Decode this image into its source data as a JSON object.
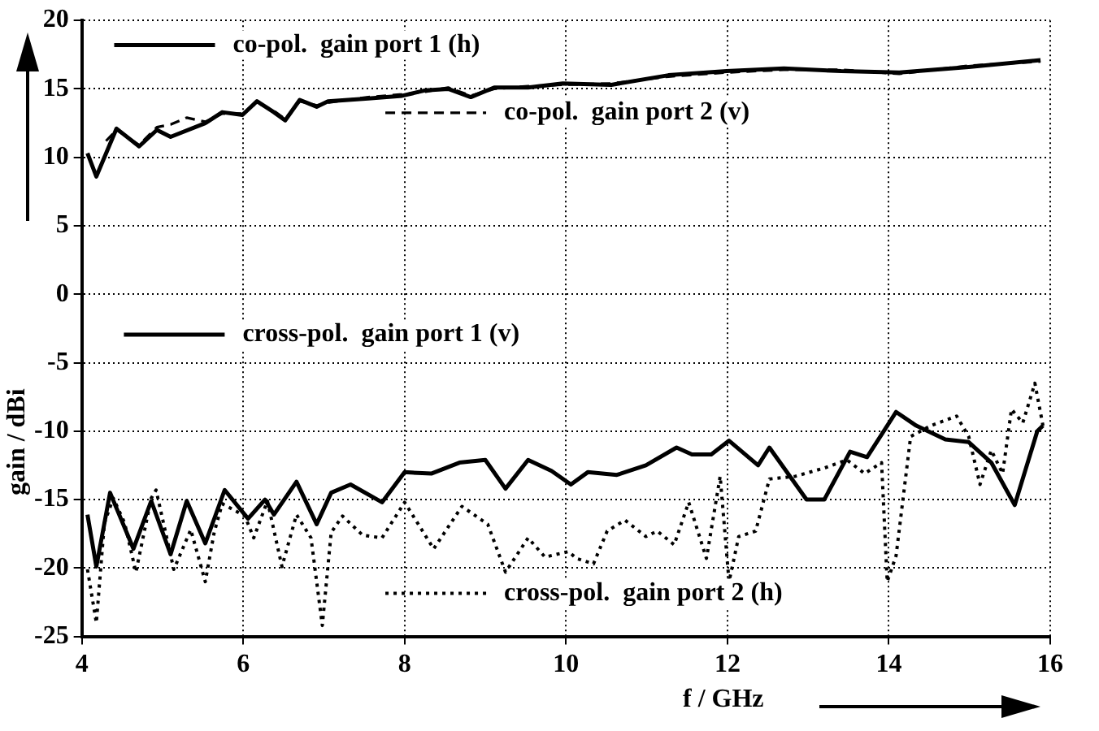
{
  "chart_data": {
    "type": "line",
    "xlabel": "f / GHz",
    "ylabel": "gain / dBi",
    "xlim": [
      4,
      16
    ],
    "xticks": [
      4,
      6,
      8,
      10,
      12,
      14,
      16
    ],
    "ylim": [
      -25,
      20
    ],
    "yticks": [
      -25,
      -20,
      -15,
      -10,
      -5,
      0,
      5,
      10,
      15,
      20
    ],
    "grid": true,
    "legend": "top left",
    "marker": "none",
    "series": [
      {
        "name": "co-pol.  gain port 1 (h)",
        "color": "#000000",
        "line_style": "solid",
        "x": [
          4.07,
          4.18,
          4.43,
          4.71,
          4.93,
          5.1,
          5.53,
          5.74,
          5.99,
          6.17,
          6.38,
          6.52,
          6.7,
          6.91,
          7.05,
          7.55,
          7.97,
          8.26,
          8.54,
          8.82,
          9.11,
          9.53,
          9.96,
          10.56,
          11.27,
          11.99,
          12.7,
          13.41,
          14.13,
          14.99,
          15.88
        ],
        "values": [
          10.3,
          8.6,
          12.1,
          10.8,
          12,
          11.5,
          12.5,
          13.3,
          13.1,
          14.1,
          13.3,
          12.7,
          14.2,
          13.7,
          14.1,
          14.3,
          14.5,
          14.9,
          15,
          14.4,
          15.1,
          15.1,
          15.4,
          15.3,
          16,
          16.3,
          16.5,
          16.3,
          16.2,
          16.6,
          17.1
        ]
      },
      {
        "name": "co-pol.  gain port 2 (v)",
        "color": "#000000",
        "line_style": "dashed",
        "x": [
          4.3,
          4.43,
          4.71,
          4.93,
          5.1,
          5.3,
          5.53,
          5.74,
          5.99,
          6.17,
          6.38,
          6.52,
          6.7,
          6.91,
          7.05,
          7.55,
          7.97,
          8.26,
          8.54,
          8.82,
          9.11,
          9.53,
          9.96,
          10.56,
          11.27,
          11.99,
          12.7,
          13.41,
          14.13,
          14.99,
          15.88
        ],
        "values": [
          11.2,
          12,
          10.9,
          12.2,
          12.4,
          12.9,
          12.6,
          13.2,
          13.2,
          14,
          13.4,
          12.8,
          14.1,
          13.8,
          14,
          14.4,
          14.6,
          14.8,
          15.1,
          14.5,
          15,
          15.2,
          15.3,
          15.4,
          15.9,
          16.2,
          16.4,
          16.4,
          16.1,
          16.7,
          17
        ]
      },
      {
        "name": "cross-pol.  gain port 1 (v)",
        "color": "#000000",
        "line_style": "solid",
        "x": [
          4.07,
          4.18,
          4.35,
          4.64,
          4.86,
          5.1,
          5.3,
          5.53,
          5.77,
          6.06,
          6.27,
          6.38,
          6.66,
          6.91,
          7.09,
          7.33,
          7.72,
          8,
          8.33,
          8.68,
          9,
          9.25,
          9.53,
          9.82,
          10.06,
          10.27,
          10.63,
          10.99,
          11.37,
          11.56,
          11.8,
          12.02,
          12.38,
          12.52,
          12.98,
          13.2,
          13.52,
          13.73,
          14.09,
          14.34,
          14.7,
          14.99,
          15.27,
          15.56,
          15.84,
          15.91
        ],
        "values": [
          -16.1,
          -19.9,
          -14.5,
          -18.6,
          -15.1,
          -19,
          -15.1,
          -18.2,
          -14.3,
          -16.4,
          -15,
          -16.1,
          -13.7,
          -16.8,
          -14.5,
          -13.9,
          -15.2,
          -13,
          -13.1,
          -12.3,
          -12.1,
          -14.2,
          -12.1,
          -12.9,
          -13.9,
          -13,
          -13.2,
          -12.5,
          -11.2,
          -11.7,
          -11.7,
          -10.7,
          -12.5,
          -11.2,
          -15,
          -15,
          -11.5,
          -11.9,
          -8.6,
          -9.6,
          -10.6,
          -10.8,
          -12.3,
          -15.4,
          -10,
          -9.6
        ]
      },
      {
        "name": "cross-pol.  gain port 2 (h)",
        "color": "#000000",
        "line_style": "dotted",
        "x": [
          4.07,
          4.18,
          4.28,
          4.39,
          4.53,
          4.67,
          4.86,
          4.92,
          5.14,
          5.35,
          5.53,
          5.64,
          5.74,
          6.02,
          6.13,
          6.3,
          6.48,
          6.66,
          6.84,
          6.98,
          7.09,
          7.23,
          7.48,
          7.72,
          8,
          8.36,
          8.71,
          9.03,
          9.25,
          9.53,
          9.74,
          10.03,
          10.13,
          10.34,
          10.51,
          10.73,
          10.99,
          11.13,
          11.34,
          11.52,
          11.74,
          11.91,
          12.02,
          12.14,
          12.35,
          12.52,
          12.84,
          13.2,
          13.48,
          13.7,
          13.91,
          13.98,
          14.09,
          14.27,
          14.52,
          14.84,
          14.99,
          15.13,
          15.27,
          15.41,
          15.52,
          15.66,
          15.81,
          15.91
        ],
        "values": [
          -20.1,
          -24,
          -16.7,
          -14.9,
          -16.7,
          -20.3,
          -14.9,
          -14.3,
          -20.1,
          -17.2,
          -21,
          -17.4,
          -15.3,
          -16.2,
          -17.8,
          -15.1,
          -19.9,
          -16.1,
          -17.8,
          -24.2,
          -17.4,
          -16.2,
          -17.6,
          -17.8,
          -15.2,
          -18.6,
          -15.5,
          -16.8,
          -20.3,
          -17.8,
          -19.2,
          -18.8,
          -19.3,
          -19.7,
          -17.3,
          -16.5,
          -17.7,
          -17.3,
          -18.3,
          -15.2,
          -19.3,
          -13.3,
          -21,
          -17.7,
          -17.3,
          -13.5,
          -13.3,
          -12.7,
          -12.1,
          -13.1,
          -12.3,
          -21,
          -19.1,
          -10.4,
          -9.6,
          -8.9,
          -10.4,
          -13.9,
          -11.4,
          -13.1,
          -8.4,
          -9.4,
          -6.5,
          -9.6
        ]
      }
    ]
  }
}
